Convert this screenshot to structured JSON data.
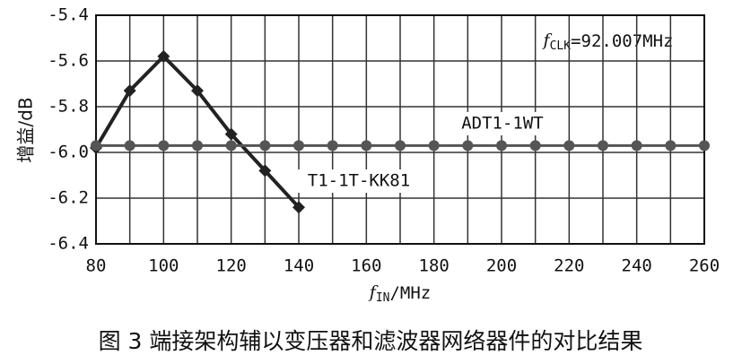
{
  "chart_data": {
    "type": "line",
    "xlabel": {
      "f": "f",
      "sub": "IN",
      "unit": "/MHz"
    },
    "ylabel": "增益/dB",
    "annotation": {
      "f": "f",
      "sub": "CLK",
      "text": "=92.007MHz"
    },
    "caption": "图 3  端接架构辅以变压器和滤波器网络器件的对比结果",
    "series": [
      {
        "name": "T1-1T-KK81",
        "color": "#222222",
        "x": [
          80,
          90,
          100,
          110,
          120,
          130,
          140
        ],
        "values": [
          -5.98,
          -5.73,
          -5.58,
          -5.73,
          -5.92,
          -6.08,
          -6.24
        ]
      },
      {
        "name": "ADT1-1WT",
        "color": "#555555",
        "x": [
          80,
          90,
          100,
          110,
          120,
          130,
          140,
          150,
          160,
          170,
          180,
          190,
          200,
          210,
          220,
          230,
          240,
          250,
          260
        ],
        "values": [
          -5.97,
          -5.97,
          -5.97,
          -5.97,
          -5.97,
          -5.97,
          -5.97,
          -5.97,
          -5.97,
          -5.97,
          -5.97,
          -5.97,
          -5.97,
          -5.97,
          -5.97,
          -5.97,
          -5.97,
          -5.97,
          -5.97
        ]
      }
    ],
    "xlim": [
      80,
      260
    ],
    "xticks": [
      80,
      100,
      120,
      140,
      160,
      180,
      200,
      220,
      240,
      260
    ],
    "ylim": [
      -6.4,
      -5.4
    ],
    "yticks": [
      -5.4,
      -5.6,
      -5.8,
      {
        "value": -6,
        "label": "-6.0"
      },
      -6.2,
      -6.4
    ],
    "grid": true
  }
}
